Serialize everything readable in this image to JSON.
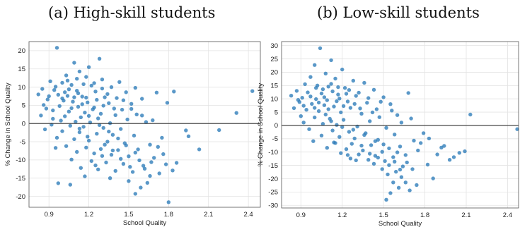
{
  "chart_data": [
    {
      "type": "scatter",
      "title": "(a) High-skill students",
      "xlabel": "School Quality",
      "ylabel": "% Change in School Quality",
      "xlim": [
        0.75,
        2.49
      ],
      "ylim": [
        -23,
        22.5
      ],
      "xticks": [
        "0.9",
        "1.2",
        "1.5",
        "1.8",
        "2.1",
        "2.4"
      ],
      "yticks": [
        "20",
        "15",
        "10",
        "5",
        "0",
        "-5",
        "-10",
        "-15",
        "-20"
      ],
      "grid": true,
      "reference_line_y": 0,
      "marker_color": "#2b7bb9",
      "points": [
        [
          0.96,
          20.8
        ],
        [
          1.28,
          17.8
        ],
        [
          1.09,
          16.7
        ],
        [
          1.2,
          15.5
        ],
        [
          1.13,
          14.3
        ],
        [
          1.03,
          13.2
        ],
        [
          1.18,
          12.8
        ],
        [
          1.3,
          12.1
        ],
        [
          1.43,
          11.4
        ],
        [
          0.91,
          11.6
        ],
        [
          1.0,
          11.2
        ],
        [
          1.07,
          10.6
        ],
        [
          1.22,
          10.4
        ],
        [
          1.37,
          10.0
        ],
        [
          1.55,
          9.8
        ],
        [
          0.85,
          9.5
        ],
        [
          0.94,
          9.2
        ],
        [
          1.11,
          9.0
        ],
        [
          1.25,
          8.8
        ],
        [
          1.48,
          8.6
        ],
        [
          1.71,
          8.5
        ],
        [
          1.84,
          8.8
        ],
        [
          2.43,
          8.9
        ],
        [
          0.82,
          8.0
        ],
        [
          0.97,
          7.9
        ],
        [
          1.04,
          7.6
        ],
        [
          1.15,
          7.4
        ],
        [
          1.32,
          7.2
        ],
        [
          1.41,
          7.0
        ],
        [
          1.6,
          6.8
        ],
        [
          0.89,
          6.6
        ],
        [
          1.01,
          6.3
        ],
        [
          1.08,
          6.0
        ],
        [
          1.19,
          5.8
        ],
        [
          1.35,
          5.6
        ],
        [
          1.52,
          5.4
        ],
        [
          1.79,
          5.7
        ],
        [
          0.86,
          5.1
        ],
        [
          0.98,
          4.8
        ],
        [
          1.12,
          4.6
        ],
        [
          1.24,
          4.4
        ],
        [
          1.39,
          4.1
        ],
        [
          1.45,
          3.8
        ],
        [
          0.93,
          3.6
        ],
        [
          1.05,
          3.3
        ],
        [
          1.17,
          3.0
        ],
        [
          1.29,
          2.7
        ],
        [
          1.56,
          2.5
        ],
        [
          2.31,
          2.9
        ],
        [
          0.84,
          2.2
        ],
        [
          1.02,
          2.0
        ],
        [
          1.14,
          1.7
        ],
        [
          1.27,
          1.4
        ],
        [
          1.49,
          1.1
        ],
        [
          0.99,
          0.8
        ],
        [
          1.1,
          0.5
        ],
        [
          1.21,
          0.3
        ],
        [
          1.36,
          0.1
        ],
        [
          1.63,
          0.4
        ],
        [
          0.92,
          -0.3
        ],
        [
          1.06,
          -0.6
        ],
        [
          1.16,
          -0.9
        ],
        [
          1.31,
          -1.2
        ],
        [
          1.44,
          -1.5
        ],
        [
          1.93,
          -1.9
        ],
        [
          2.18,
          -1.8
        ],
        [
          0.87,
          -1.6
        ],
        [
          1.0,
          -2.1
        ],
        [
          1.13,
          -2.4
        ],
        [
          1.26,
          -2.8
        ],
        [
          1.38,
          -3.1
        ],
        [
          1.54,
          -3.3
        ],
        [
          1.95,
          -3.5
        ],
        [
          0.96,
          -3.9
        ],
        [
          1.09,
          -4.3
        ],
        [
          1.2,
          -4.7
        ],
        [
          1.34,
          -5.0
        ],
        [
          1.47,
          -5.4
        ],
        [
          1.66,
          -5.8
        ],
        [
          1.03,
          -6.2
        ],
        [
          1.18,
          -6.6
        ],
        [
          1.29,
          -7.0
        ],
        [
          1.42,
          -7.3
        ],
        [
          1.57,
          -7.1
        ],
        [
          2.03,
          -7.1
        ],
        [
          0.95,
          -6.7
        ],
        [
          1.11,
          -7.8
        ],
        [
          1.24,
          -8.2
        ],
        [
          1.37,
          -8.6
        ],
        [
          1.5,
          -9.0
        ],
        [
          1.69,
          -9.4
        ],
        [
          1.07,
          -9.9
        ],
        [
          1.22,
          -10.3
        ],
        [
          1.33,
          -10.7
        ],
        [
          1.46,
          -11.1
        ],
        [
          1.61,
          -11.6
        ],
        [
          1.78,
          -11.2
        ],
        [
          1.14,
          -12.2
        ],
        [
          1.27,
          -12.6
        ],
        [
          1.4,
          -13.0
        ],
        [
          1.53,
          -13.3
        ],
        [
          1.73,
          -13.7
        ],
        [
          1.83,
          -12.9
        ],
        [
          1.17,
          -14.5
        ],
        [
          1.36,
          -15.0
        ],
        [
          1.5,
          -15.8
        ],
        [
          1.64,
          -16.3
        ],
        [
          0.97,
          -16.4
        ],
        [
          1.06,
          -16.8
        ],
        [
          1.59,
          -17.6
        ],
        [
          1.55,
          -19.3
        ],
        [
          1.8,
          -21.6
        ],
        [
          1.05,
          9.4
        ],
        [
          1.12,
          8.3
        ],
        [
          1.18,
          7.1
        ],
        [
          1.26,
          6.5
        ],
        [
          1.34,
          8.1
        ],
        [
          0.95,
          10.1
        ],
        [
          1.02,
          8.6
        ],
        [
          1.09,
          7.2
        ],
        [
          1.15,
          5.3
        ],
        [
          1.23,
          3.9
        ],
        [
          1.31,
          4.9
        ],
        [
          1.4,
          2.3
        ],
        [
          0.9,
          7.5
        ],
        [
          1.0,
          6.9
        ],
        [
          1.07,
          4.2
        ],
        [
          1.2,
          2.1
        ],
        [
          1.28,
          -0.4
        ],
        [
          1.35,
          -2.2
        ],
        [
          1.42,
          -4.1
        ],
        [
          1.48,
          -6.0
        ],
        [
          1.55,
          -8.0
        ],
        [
          1.58,
          -10.1
        ],
        [
          1.62,
          -12.4
        ],
        [
          1.3,
          -8.9
        ],
        [
          1.25,
          -11.5
        ],
        [
          1.44,
          -9.7
        ],
        [
          1.51,
          -11.9
        ],
        [
          1.66,
          -14.4
        ],
        [
          1.38,
          -7.4
        ],
        [
          1.32,
          -5.8
        ],
        [
          1.19,
          -3.6
        ],
        [
          1.13,
          -1.4
        ],
        [
          0.88,
          4.1
        ],
        [
          0.93,
          1.3
        ],
        [
          1.04,
          11.8
        ],
        [
          1.11,
          12.3
        ],
        [
          1.16,
          10.8
        ],
        [
          1.24,
          11.1
        ],
        [
          1.3,
          9.6
        ],
        [
          1.46,
          6.4
        ],
        [
          1.52,
          4.0
        ],
        [
          1.6,
          2.2
        ],
        [
          1.68,
          0.9
        ],
        [
          1.75,
          -3.9
        ],
        [
          1.72,
          -6.4
        ],
        [
          1.76,
          -8.4
        ],
        [
          1.86,
          -10.8
        ],
        [
          1.67,
          -10.6
        ]
      ]
    },
    {
      "type": "scatter",
      "title": "(b) Low-skill students",
      "xlabel": "School Quality",
      "ylabel": "% Change in School Quality",
      "xlim": [
        0.76,
        2.48
      ],
      "ylim": [
        -31,
        31.5
      ],
      "xticks": [
        "0.9",
        "1.2",
        "1.5",
        "1.8",
        "2.1",
        "2.4"
      ],
      "yticks": [
        "30",
        "25",
        "20",
        "15",
        "10",
        "5",
        "0",
        "-5",
        "-10",
        "-15",
        "-20",
        "-25",
        "-30"
      ],
      "grid": true,
      "reference_line_y": 0,
      "marker_color": "#2b7bb9",
      "points": [
        [
          1.04,
          29.0
        ],
        [
          1.12,
          24.5
        ],
        [
          1.0,
          22.7
        ],
        [
          1.2,
          21.0
        ],
        [
          1.08,
          19.5
        ],
        [
          0.97,
          18.2
        ],
        [
          1.15,
          17.6
        ],
        [
          1.28,
          16.8
        ],
        [
          1.36,
          16.0
        ],
        [
          0.93,
          15.5
        ],
        [
          1.02,
          15.0
        ],
        [
          1.1,
          14.6
        ],
        [
          1.22,
          14.1
        ],
        [
          1.43,
          13.4
        ],
        [
          1.68,
          12.2
        ],
        [
          0.87,
          13.0
        ],
        [
          0.95,
          12.4
        ],
        [
          1.05,
          12.0
        ],
        [
          1.17,
          11.6
        ],
        [
          1.3,
          11.1
        ],
        [
          1.5,
          10.6
        ],
        [
          0.83,
          11.2
        ],
        [
          0.91,
          10.4
        ],
        [
          1.01,
          9.9
        ],
        [
          1.09,
          9.5
        ],
        [
          1.24,
          9.0
        ],
        [
          1.38,
          8.5
        ],
        [
          1.55,
          8.0
        ],
        [
          0.89,
          8.8
        ],
        [
          0.98,
          8.1
        ],
        [
          1.07,
          7.6
        ],
        [
          1.14,
          7.1
        ],
        [
          1.26,
          6.6
        ],
        [
          1.45,
          6.1
        ],
        [
          0.85,
          6.5
        ],
        [
          0.94,
          5.9
        ],
        [
          1.03,
          5.4
        ],
        [
          1.19,
          4.9
        ],
        [
          1.34,
          4.4
        ],
        [
          1.6,
          3.9
        ],
        [
          2.13,
          4.1
        ],
        [
          0.9,
          3.5
        ],
        [
          1.0,
          3.0
        ],
        [
          1.11,
          2.5
        ],
        [
          1.21,
          2.1
        ],
        [
          1.4,
          1.6
        ],
        [
          1.7,
          2.6
        ],
        [
          0.92,
          1.1
        ],
        [
          1.06,
          0.6
        ],
        [
          1.16,
          0.2
        ],
        [
          1.31,
          -0.4
        ],
        [
          1.52,
          -0.9
        ],
        [
          2.47,
          -1.4
        ],
        [
          0.96,
          -1.4
        ],
        [
          1.13,
          -1.9
        ],
        [
          1.25,
          -2.4
        ],
        [
          1.37,
          -2.9
        ],
        [
          1.58,
          -3.4
        ],
        [
          1.79,
          -2.9
        ],
        [
          1.05,
          -3.8
        ],
        [
          1.18,
          -4.3
        ],
        [
          1.29,
          -4.9
        ],
        [
          1.46,
          -5.4
        ],
        [
          1.72,
          -5.7
        ],
        [
          1.83,
          -4.9
        ],
        [
          0.99,
          -5.9
        ],
        [
          1.14,
          -6.4
        ],
        [
          1.27,
          -6.9
        ],
        [
          1.41,
          -7.4
        ],
        [
          1.62,
          -7.9
        ],
        [
          1.94,
          -7.7
        ],
        [
          1.09,
          -8.4
        ],
        [
          1.23,
          -8.9
        ],
        [
          1.35,
          -9.4
        ],
        [
          1.49,
          -9.9
        ],
        [
          1.75,
          -9.4
        ],
        [
          2.09,
          -9.7
        ],
        [
          1.19,
          -10.4
        ],
        [
          1.32,
          -10.9
        ],
        [
          1.44,
          -11.4
        ],
        [
          1.57,
          -11.9
        ],
        [
          1.89,
          -10.9
        ],
        [
          1.26,
          -12.4
        ],
        [
          1.39,
          -12.9
        ],
        [
          1.51,
          -13.4
        ],
        [
          1.67,
          -13.9
        ],
        [
          1.98,
          -12.9
        ],
        [
          1.43,
          -14.4
        ],
        [
          1.54,
          -14.9
        ],
        [
          1.64,
          -15.4
        ],
        [
          1.82,
          -14.7
        ],
        [
          1.49,
          -16.4
        ],
        [
          1.59,
          -17.4
        ],
        [
          1.71,
          -16.4
        ],
        [
          1.53,
          -18.4
        ],
        [
          1.63,
          -19.4
        ],
        [
          1.86,
          -19.9
        ],
        [
          1.57,
          -21.4
        ],
        [
          1.74,
          -22.4
        ],
        [
          1.61,
          -23.4
        ],
        [
          1.69,
          -24.4
        ],
        [
          1.55,
          -25.4
        ],
        [
          1.52,
          -27.9
        ],
        [
          1.66,
          -21.4
        ],
        [
          1.06,
          13.6
        ],
        [
          1.13,
          12.8
        ],
        [
          1.18,
          10.1
        ],
        [
          1.23,
          11.9
        ],
        [
          1.01,
          14.1
        ],
        [
          0.97,
          10.9
        ],
        [
          1.03,
          8.6
        ],
        [
          1.1,
          6.1
        ],
        [
          1.16,
          9.1
        ],
        [
          1.21,
          7.3
        ],
        [
          1.29,
          8.1
        ],
        [
          1.33,
          6.4
        ],
        [
          1.42,
          4.9
        ],
        [
          1.47,
          3.1
        ],
        [
          1.08,
          4.1
        ],
        [
          1.12,
          1.6
        ],
        [
          1.2,
          -0.6
        ],
        [
          1.28,
          -1.6
        ],
        [
          1.36,
          -3.6
        ],
        [
          1.44,
          -5.9
        ],
        [
          1.5,
          -7.1
        ],
        [
          1.54,
          -8.6
        ],
        [
          1.6,
          -10.1
        ],
        [
          1.66,
          -11.1
        ],
        [
          1.34,
          -7.6
        ],
        [
          1.4,
          -10.6
        ],
        [
          1.46,
          -12.1
        ],
        [
          1.58,
          -13.6
        ],
        [
          1.62,
          -16.6
        ],
        [
          1.3,
          -13.1
        ],
        [
          1.24,
          -11.1
        ],
        [
          1.15,
          -6.6
        ],
        [
          0.88,
          9.6
        ],
        [
          0.92,
          7.4
        ],
        [
          1.0,
          6.6
        ],
        [
          1.07,
          10.6
        ],
        [
          1.12,
          15.6
        ],
        [
          1.17,
          14.4
        ],
        [
          1.25,
          13.3
        ],
        [
          1.32,
          12.3
        ],
        [
          1.39,
          10.3
        ],
        [
          1.48,
          8.9
        ],
        [
          1.56,
          5.6
        ],
        [
          1.63,
          1.1
        ],
        [
          1.77,
          -6.6
        ],
        [
          1.92,
          -8.3
        ],
        [
          2.01,
          -11.9
        ],
        [
          2.05,
          -10.3
        ]
      ]
    }
  ]
}
